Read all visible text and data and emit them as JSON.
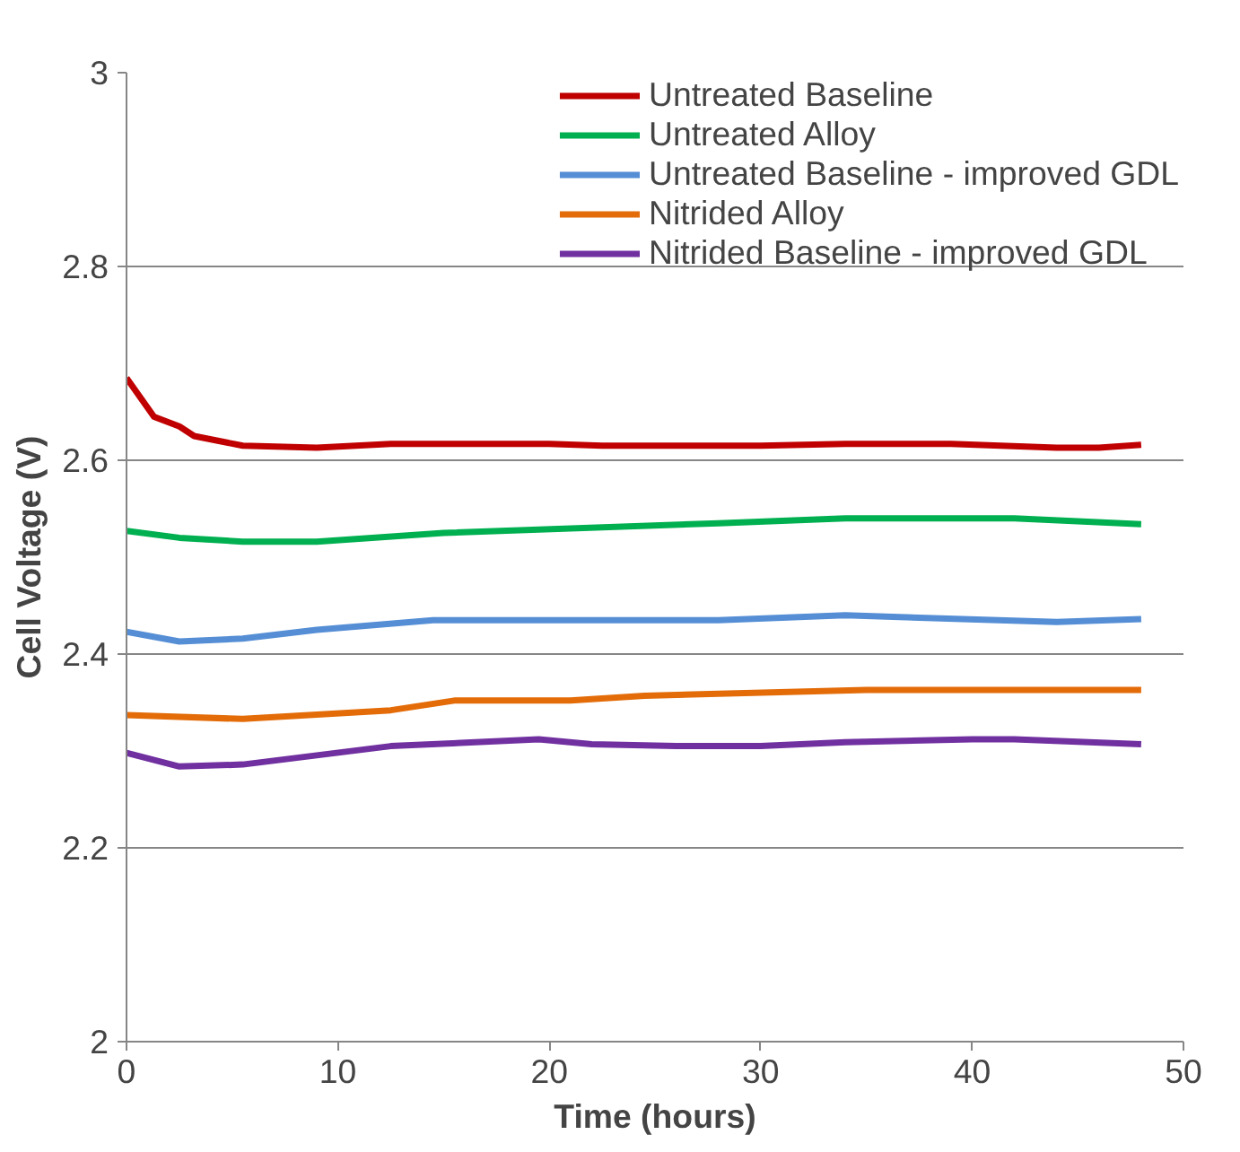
{
  "chart_data": {
    "type": "line",
    "xlabel": "Time (hours)",
    "ylabel": "Cell Voltage (V)",
    "xlim": [
      0,
      50
    ],
    "xticks": [
      0,
      10,
      20,
      30,
      40,
      50
    ],
    "ylim": [
      2,
      3
    ],
    "yticks": [
      2,
      2.2,
      2.4,
      2.6,
      2.8,
      3
    ],
    "grid": "y",
    "legend": "top right",
    "marker": "none",
    "line_style": "solid",
    "series": [
      {
        "name": "Untreated Baseline",
        "color": "#c00000",
        "x": [
          0,
          1.3,
          2.5,
          3.2,
          5.5,
          9,
          12.5,
          20,
          22.5,
          30,
          34,
          39,
          44,
          46,
          48
        ],
        "values": [
          2.685,
          2.645,
          2.635,
          2.625,
          2.615,
          2.613,
          2.617,
          2.617,
          2.615,
          2.615,
          2.617,
          2.617,
          2.613,
          2.613,
          2.616
        ]
      },
      {
        "name": "Untreated Alloy",
        "color": "#00b050",
        "x": [
          0,
          2.5,
          5.5,
          9,
          15,
          28,
          34,
          42,
          48
        ],
        "values": [
          2.527,
          2.52,
          2.516,
          2.516,
          2.525,
          2.535,
          2.54,
          2.54,
          2.534
        ]
      },
      {
        "name": "Untreated Baseline - improved GDL",
        "color": "#558ed5",
        "x": [
          0,
          2.5,
          5.5,
          9,
          14.5,
          28,
          34,
          44,
          48
        ],
        "values": [
          2.423,
          2.413,
          2.416,
          2.425,
          2.435,
          2.435,
          2.44,
          2.433,
          2.436
        ]
      },
      {
        "name": "Nitrided Alloy",
        "color": "#e36c09",
        "x": [
          0,
          5.5,
          12.5,
          15.5,
          21,
          24.5,
          35,
          48
        ],
        "values": [
          2.337,
          2.333,
          2.342,
          2.352,
          2.352,
          2.357,
          2.363,
          2.363
        ]
      },
      {
        "name": "Nitrided Baseline - improved GDL",
        "color": "#7030a0",
        "x": [
          0,
          2.5,
          5.5,
          12.5,
          19.5,
          22,
          26,
          30,
          34,
          40,
          42,
          48
        ],
        "values": [
          2.298,
          2.284,
          2.286,
          2.305,
          2.312,
          2.307,
          2.305,
          2.305,
          2.309,
          2.312,
          2.312,
          2.307
        ]
      }
    ]
  }
}
